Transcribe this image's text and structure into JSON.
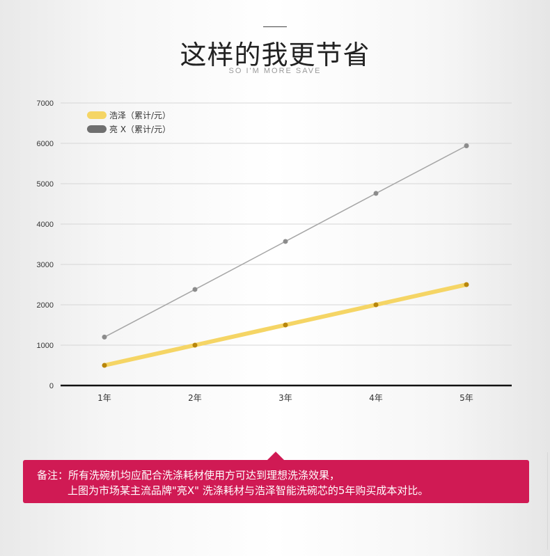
{
  "header": {
    "title": "这样的我更节省",
    "subtitle": "SO I'M MORE SAVE"
  },
  "chart_data": {
    "type": "line",
    "categories": [
      "1年",
      "2年",
      "3年",
      "4年",
      "5年"
    ],
    "ylim": [
      0,
      7000
    ],
    "yticks": [
      0,
      1000,
      2000,
      3000,
      4000,
      5000,
      6000,
      7000
    ],
    "grid": true,
    "legend_placement": "top-left",
    "series": [
      {
        "name": "浩泽（累计/元）",
        "values": [
          500,
          1000,
          1500,
          2000,
          2500
        ],
        "color": "#f5d565",
        "marker_color": "#b8860b"
      },
      {
        "name": "亮 X（累计/元）",
        "values": [
          1200,
          2380,
          3570,
          4760,
          5940
        ],
        "color": "#a6a6a6",
        "marker_color": "#8c8c8c"
      }
    ]
  },
  "note": {
    "line1": "备注：所有洗碗机均应配合洗涤耗材使用方可达到理想洗涤效果，",
    "line2": "上图为市场某主流品牌\"亮X\" 洗涤耗材与浩泽智能洗碗芯的5年购买成本对比。",
    "color": "#d01a54"
  }
}
